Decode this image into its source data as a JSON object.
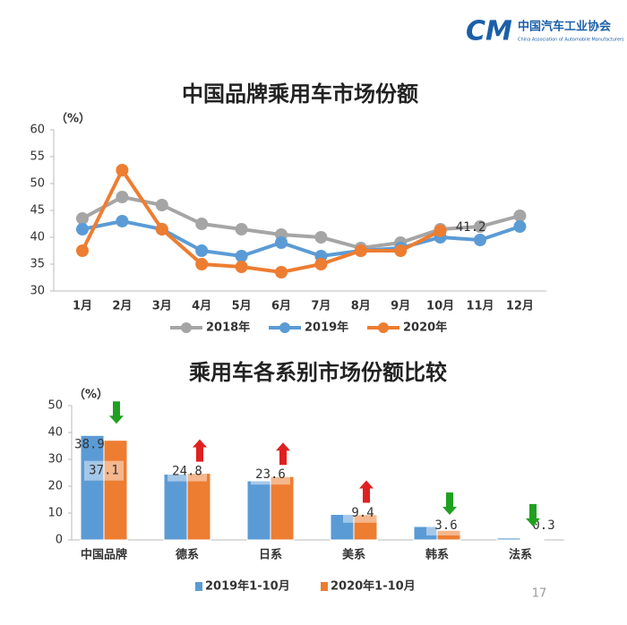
{
  "header": {
    "org": "中国汽车工业协会",
    "org_en": "China Association of Automobile Manufacturers",
    "page": "17"
  },
  "chart_data": [
    {
      "type": "line",
      "title": "中国品牌乘用车市场份额",
      "y_label": "（%）",
      "categories": [
        "1月",
        "2月",
        "3月",
        "4月",
        "5月",
        "6月",
        "7月",
        "8月",
        "9月",
        "10月",
        "11月",
        "12月"
      ],
      "series": [
        {
          "name": "2018年",
          "color": "#a5a5a5",
          "values": [
            43.5,
            47.5,
            46,
            42.5,
            41.5,
            40.5,
            40,
            38,
            39,
            41.5,
            42,
            44
          ]
        },
        {
          "name": "2019年",
          "color": "#5b9bd5",
          "values": [
            41.5,
            43,
            41.5,
            37.5,
            36.5,
            39,
            36.5,
            37.5,
            38,
            40,
            39.5,
            42
          ]
        },
        {
          "name": "2020年",
          "color": "#ed7d31",
          "values": [
            37.5,
            52.5,
            41.5,
            35,
            34.5,
            33.5,
            35,
            37.5,
            37.5,
            41.2,
            null,
            null
          ]
        }
      ],
      "ylim": [
        30,
        60
      ],
      "yticks": [
        30,
        35,
        40,
        45,
        50,
        55,
        60
      ],
      "grid": false
    },
    {
      "type": "bar",
      "title": "乘用车各系别市场份额比较",
      "y_label": "（%）",
      "categories": [
        "中国品牌",
        "德系",
        "日系",
        "美系",
        "韩系",
        "法系"
      ],
      "series": [
        {
          "name": "2019年1-10月",
          "color": "#5b9bd5",
          "values": [
            38.9,
            24.5,
            22,
            9.5,
            5,
            0.7
          ]
        },
        {
          "name": "2020年1-10月",
          "color": "#ed7d31",
          "values": [
            37.1,
            24.8,
            23.6,
            9.4,
            3.6,
            0.3
          ]
        }
      ],
      "ylim": [
        0,
        50
      ],
      "yticks": [
        0,
        10,
        20,
        30,
        40,
        50
      ],
      "grid": false
    }
  ]
}
